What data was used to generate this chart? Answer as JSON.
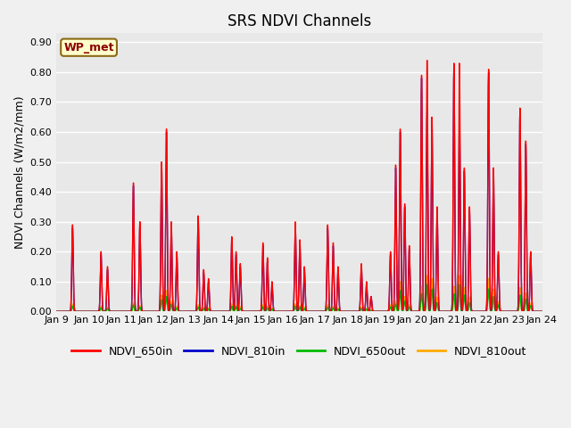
{
  "title": "SRS NDVI Channels",
  "ylabel": "NDVI Channels (W/m2/mm)",
  "annotation": "WP_met",
  "ylim": [
    0.0,
    0.93
  ],
  "yticks": [
    0.0,
    0.1,
    0.2,
    0.3,
    0.4,
    0.5,
    0.6,
    0.7,
    0.8,
    0.9
  ],
  "xtick_labels": [
    "Jan 9",
    "Jan 10",
    "Jan 11",
    "Jan 12",
    "Jan 13",
    "Jan 14",
    "Jan 15",
    "Jan 16",
    "Jan 17",
    "Jan 18",
    "Jan 19",
    "Jan 20",
    "Jan 21",
    "Jan 22",
    "Jan 23",
    "Jan 24"
  ],
  "legend_entries": [
    "NDVI_650in",
    "NDVI_810in",
    "NDVI_650out",
    "NDVI_810out"
  ],
  "legend_colors": [
    "#ff0000",
    "#0000cc",
    "#00bb00",
    "#ffaa00"
  ],
  "colors": {
    "NDVI_650in": "#ff0000",
    "NDVI_810in": "#0000cc",
    "NDVI_650out": "#00bb00",
    "NDVI_810out": "#ffaa00"
  },
  "peaks": [
    [
      0.5,
      0.29,
      0.28,
      0.018,
      0.025
    ],
    [
      1.38,
      0.2,
      0.19,
      0.012,
      0.018
    ],
    [
      1.58,
      0.15,
      0.14,
      0.01,
      0.015
    ],
    [
      2.38,
      0.43,
      0.42,
      0.022,
      0.03
    ],
    [
      2.58,
      0.3,
      0.29,
      0.015,
      0.02
    ],
    [
      3.25,
      0.5,
      0.49,
      0.04,
      0.055
    ],
    [
      3.4,
      0.61,
      0.6,
      0.05,
      0.07
    ],
    [
      3.55,
      0.3,
      0.29,
      0.025,
      0.035
    ],
    [
      3.72,
      0.2,
      0.19,
      0.012,
      0.018
    ],
    [
      4.38,
      0.32,
      0.31,
      0.015,
      0.022
    ],
    [
      4.55,
      0.14,
      0.13,
      0.01,
      0.014
    ],
    [
      4.7,
      0.11,
      0.1,
      0.008,
      0.012
    ],
    [
      5.42,
      0.25,
      0.24,
      0.018,
      0.026
    ],
    [
      5.55,
      0.2,
      0.19,
      0.015,
      0.02
    ],
    [
      5.68,
      0.16,
      0.15,
      0.01,
      0.016
    ],
    [
      6.38,
      0.23,
      0.22,
      0.015,
      0.022
    ],
    [
      6.52,
      0.18,
      0.17,
      0.012,
      0.018
    ],
    [
      6.66,
      0.1,
      0.09,
      0.008,
      0.012
    ],
    [
      7.38,
      0.3,
      0.29,
      0.018,
      0.026
    ],
    [
      7.52,
      0.24,
      0.23,
      0.015,
      0.02
    ],
    [
      7.66,
      0.15,
      0.14,
      0.01,
      0.015
    ],
    [
      8.38,
      0.29,
      0.28,
      0.015,
      0.022
    ],
    [
      8.55,
      0.23,
      0.22,
      0.012,
      0.018
    ],
    [
      8.7,
      0.15,
      0.14,
      0.008,
      0.012
    ],
    [
      9.42,
      0.16,
      0.15,
      0.01,
      0.015
    ],
    [
      9.58,
      0.1,
      0.09,
      0.008,
      0.01
    ],
    [
      9.72,
      0.05,
      0.05,
      0.004,
      0.006
    ],
    [
      10.32,
      0.2,
      0.19,
      0.015,
      0.022
    ],
    [
      10.48,
      0.49,
      0.48,
      0.025,
      0.035
    ],
    [
      10.62,
      0.61,
      0.6,
      0.07,
      0.1
    ],
    [
      10.76,
      0.36,
      0.35,
      0.035,
      0.05
    ],
    [
      10.9,
      0.22,
      0.21,
      0.015,
      0.022
    ],
    [
      11.28,
      0.79,
      0.78,
      0.06,
      0.085
    ],
    [
      11.45,
      0.84,
      0.67,
      0.09,
      0.12
    ],
    [
      11.6,
      0.65,
      0.64,
      0.075,
      0.11
    ],
    [
      11.76,
      0.35,
      0.34,
      0.03,
      0.048
    ],
    [
      12.28,
      0.83,
      0.82,
      0.06,
      0.085
    ],
    [
      12.45,
      0.83,
      0.66,
      0.09,
      0.12
    ],
    [
      12.6,
      0.48,
      0.47,
      0.055,
      0.08
    ],
    [
      12.76,
      0.35,
      0.34,
      0.03,
      0.048
    ],
    [
      13.35,
      0.81,
      0.8,
      0.075,
      0.11
    ],
    [
      13.5,
      0.48,
      0.47,
      0.05,
      0.075
    ],
    [
      13.65,
      0.2,
      0.19,
      0.022,
      0.032
    ],
    [
      14.32,
      0.68,
      0.67,
      0.055,
      0.08
    ],
    [
      14.5,
      0.57,
      0.56,
      0.042,
      0.062
    ],
    [
      14.65,
      0.2,
      0.19,
      0.02,
      0.028
    ]
  ],
  "sigma": 0.022,
  "fig_bg": "#f0f0f0",
  "plot_bg": "#e8e8e8",
  "grid_color": "#ffffff",
  "title_fontsize": 12,
  "tick_fontsize": 8,
  "ylabel_fontsize": 9,
  "legend_fontsize": 9
}
